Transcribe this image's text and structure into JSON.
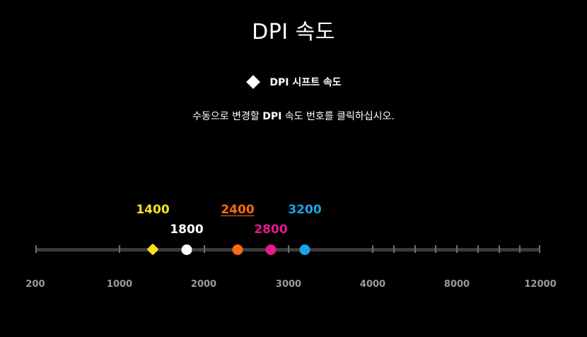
{
  "title": "DPI 속도",
  "shift": {
    "icon": "diamond-icon",
    "label": "DPI 시프트 속도"
  },
  "instruction": {
    "before": "수동으로 변경할 ",
    "bold": "DPI",
    "after": " 속도 번호를 클릭하십시오."
  },
  "scale": {
    "labels": [
      "200",
      "1000",
      "2000",
      "3000",
      "4000",
      "8000",
      "12000"
    ]
  },
  "dpi_levels": [
    {
      "value": "1400",
      "color": "#f5e21b",
      "shape": "diamond",
      "shift": true
    },
    {
      "value": "1800",
      "color": "#ffffff",
      "shape": "circle"
    },
    {
      "value": "2400",
      "color": "#ff6a13",
      "shape": "circle",
      "selected": true
    },
    {
      "value": "2800",
      "color": "#e8198b",
      "shape": "circle"
    },
    {
      "value": "3200",
      "color": "#1aa3e6",
      "shape": "circle"
    }
  ]
}
